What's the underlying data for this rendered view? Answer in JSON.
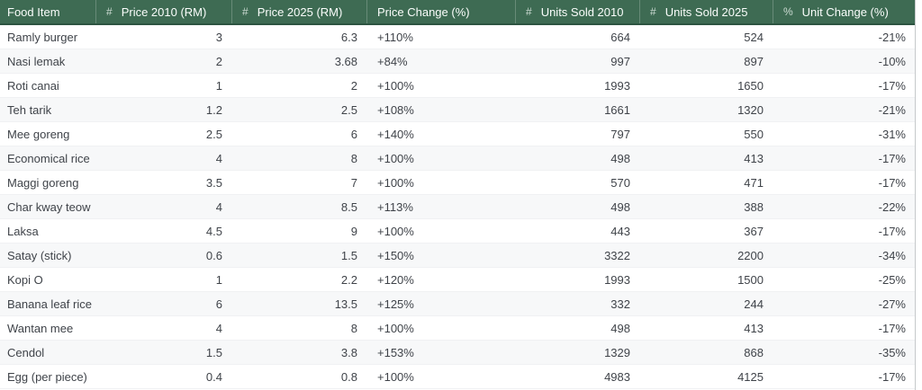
{
  "colors": {
    "header_bg": "#3e6b53",
    "header_border": "#2d5441",
    "header_text": "#fafdfb",
    "header_icon": "#d9e5de",
    "row_alt_bg": "#f7f8f9",
    "row_border": "#f0f1f3",
    "body_text": "#3f4349",
    "table_border": "#c6c9cb"
  },
  "table": {
    "columns": [
      {
        "label": "Food Item",
        "icon": "",
        "type": "text",
        "align": "left"
      },
      {
        "label": "Price 2010 (RM)",
        "icon": "#",
        "type": "number",
        "align": "right"
      },
      {
        "label": "Price 2025 (RM)",
        "icon": "#",
        "type": "number",
        "align": "right"
      },
      {
        "label": "Price Change (%)",
        "icon": "",
        "type": "text",
        "align": "left"
      },
      {
        "label": "Units Sold 2010",
        "icon": "#",
        "type": "number",
        "align": "right"
      },
      {
        "label": "Units Sold 2025",
        "icon": "#",
        "type": "number",
        "align": "right"
      },
      {
        "label": "Unit Change (%)",
        "icon": "%",
        "type": "percent",
        "align": "right"
      }
    ],
    "rows": [
      [
        "Ramly burger",
        "3",
        "6.3",
        "+110%",
        "664",
        "524",
        "-21%"
      ],
      [
        "Nasi lemak",
        "2",
        "3.68",
        "+84%",
        "997",
        "897",
        "-10%"
      ],
      [
        "Roti canai",
        "1",
        "2",
        "+100%",
        "1993",
        "1650",
        "-17%"
      ],
      [
        "Teh tarik",
        "1.2",
        "2.5",
        "+108%",
        "1661",
        "1320",
        "-21%"
      ],
      [
        "Mee goreng",
        "2.5",
        "6",
        "+140%",
        "797",
        "550",
        "-31%"
      ],
      [
        "Economical rice",
        "4",
        "8",
        "+100%",
        "498",
        "413",
        "-17%"
      ],
      [
        "Maggi goreng",
        "3.5",
        "7",
        "+100%",
        "570",
        "471",
        "-17%"
      ],
      [
        "Char kway teow",
        "4",
        "8.5",
        "+113%",
        "498",
        "388",
        "-22%"
      ],
      [
        "Laksa",
        "4.5",
        "9",
        "+100%",
        "443",
        "367",
        "-17%"
      ],
      [
        "Satay (stick)",
        "0.6",
        "1.5",
        "+150%",
        "3322",
        "2200",
        "-34%"
      ],
      [
        "Kopi O",
        "1",
        "2.2",
        "+120%",
        "1993",
        "1500",
        "-25%"
      ],
      [
        "Banana leaf rice",
        "6",
        "13.5",
        "+125%",
        "332",
        "244",
        "-27%"
      ],
      [
        "Wantan mee",
        "4",
        "8",
        "+100%",
        "498",
        "413",
        "-17%"
      ],
      [
        "Cendol",
        "1.5",
        "3.8",
        "+153%",
        "1329",
        "868",
        "-35%"
      ],
      [
        "Egg (per piece)",
        "0.4",
        "0.8",
        "+100%",
        "4983",
        "4125",
        "-17%"
      ]
    ]
  }
}
